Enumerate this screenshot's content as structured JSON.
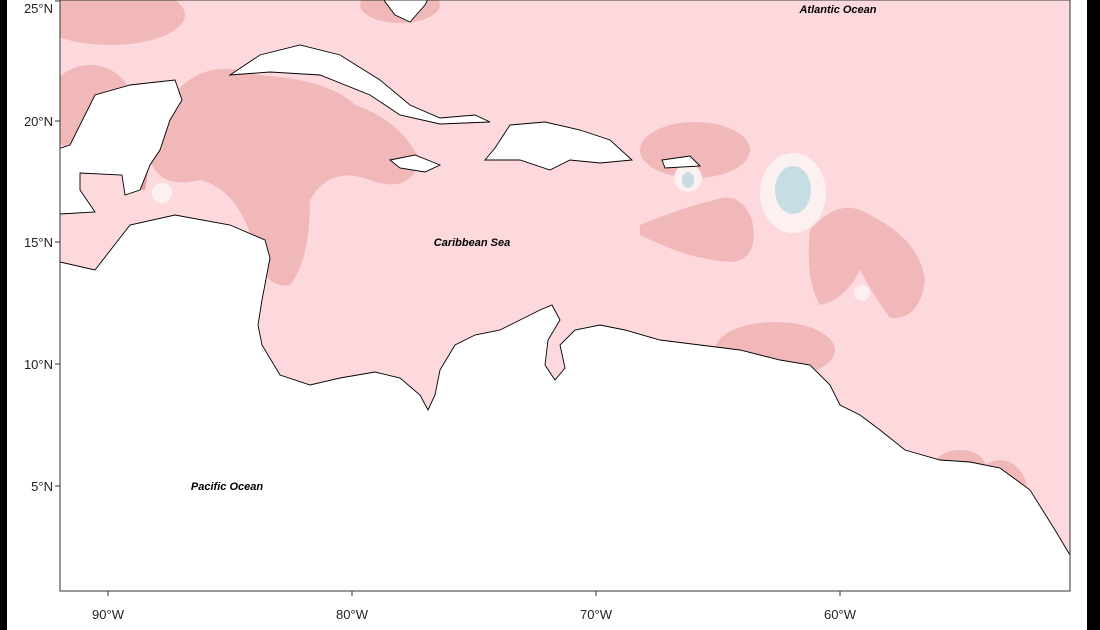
{
  "map": {
    "x_ticks": [
      "90°W",
      "80°W",
      "70°W",
      "60°W"
    ],
    "y_ticks": [
      "25°N",
      "20°N",
      "15°N",
      "10°N",
      "5°N"
    ],
    "labels": {
      "atlantic": "Atlantic Ocean",
      "caribbean": "Caribbean Sea",
      "pacific": "Pacific Ocean"
    },
    "extent": {
      "lon": [
        -92,
        -51
      ],
      "lat": [
        0.8,
        25
      ]
    },
    "colors": {
      "base": "#fdd9dd",
      "elevated": "#f0b8b9",
      "high": "#ec9a9c",
      "low": "#c5dde3",
      "neutral": "#fdf0f0",
      "land": "#ffffff"
    }
  }
}
